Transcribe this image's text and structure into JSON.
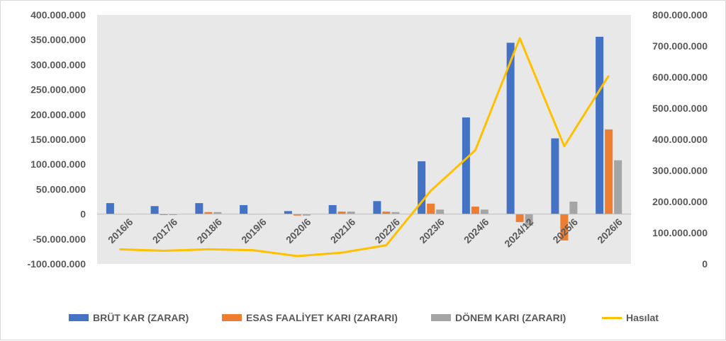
{
  "chart_data": {
    "type": "bar",
    "categories": [
      "2016/6",
      "2017/6",
      "2018/6",
      "2019/6",
      "2020/6",
      "2021/6",
      "2022/6",
      "2023/6",
      "2024/6",
      "2024/12",
      "2025/6",
      "2026/6"
    ],
    "series": [
      {
        "name": "BRÜT KAR (ZARAR)",
        "type": "bar",
        "axis": "left",
        "color": "#4472C4",
        "values": [
          22000000,
          16000000,
          22000000,
          18000000,
          6000000,
          18000000,
          26000000,
          106000000,
          194000000,
          344000000,
          152000000,
          356000000
        ]
      },
      {
        "name": "ESAS FAALİYET KARI (ZARARI)",
        "type": "bar",
        "axis": "left",
        "color": "#ED7D31",
        "values": [
          0,
          -2000000,
          4000000,
          0,
          -3000000,
          5000000,
          5000000,
          21000000,
          15000000,
          -16000000,
          -53000000,
          170000000
        ]
      },
      {
        "name": "DÖNEM KARI (ZARARI)",
        "type": "bar",
        "axis": "left",
        "color": "#A5A5A5",
        "values": [
          0,
          -2000000,
          4000000,
          0,
          -3000000,
          5000000,
          4000000,
          9000000,
          9000000,
          -23000000,
          25000000,
          108000000
        ]
      },
      {
        "name": "Hasılat",
        "type": "line",
        "axis": "right",
        "color": "#FFC000",
        "values": [
          47000000,
          42000000,
          47000000,
          44000000,
          25000000,
          36000000,
          60000000,
          235000000,
          365000000,
          725000000,
          378000000,
          605000000
        ]
      }
    ],
    "y_left": {
      "min": -100000000,
      "max": 400000000,
      "ticks": [
        400000000,
        350000000,
        300000000,
        250000000,
        200000000,
        150000000,
        100000000,
        50000000,
        0,
        -50000000,
        -100000000
      ],
      "tick_labels": [
        "400.000.000",
        "350.000.000",
        "300.000.000",
        "250.000.000",
        "200.000.000",
        "150.000.000",
        "100.000.000",
        "50.000.000",
        "0",
        "-50.000.000",
        "-100.000.000"
      ]
    },
    "y_right": {
      "min": 0,
      "max": 800000000,
      "ticks": [
        800000000,
        700000000,
        600000000,
        500000000,
        400000000,
        300000000,
        200000000,
        100000000,
        0
      ],
      "tick_labels": [
        "800.000.000",
        "700.000.000",
        "600.000.000",
        "500.000.000",
        "400.000.000",
        "300.000.000",
        "200.000.000",
        "100.000.000",
        "0"
      ]
    },
    "plot_background": "#E8E8E8",
    "grid": false,
    "legend": "bottom"
  }
}
